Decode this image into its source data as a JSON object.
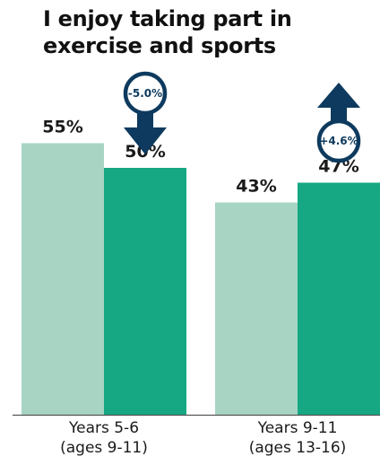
{
  "chart_data": {
    "type": "bar",
    "title_lines": [
      "I enjoy taking part in",
      "exercise and sports"
    ],
    "categories": [
      [
        "Years 5-6",
        "(ages 9-11)"
      ],
      [
        "Years 9-11",
        "(ages 13-16)"
      ]
    ],
    "series": [
      {
        "values": [
          55,
          43
        ],
        "labels": [
          "55%",
          "43%"
        ],
        "color": "#a8d5c3"
      },
      {
        "values": [
          50,
          47
        ],
        "labels": [
          "50%",
          "47%"
        ],
        "color": "#15a882"
      }
    ],
    "changes": [
      {
        "label": "-5.0%",
        "direction": "down"
      },
      {
        "label": "+4.6%",
        "direction": "up"
      }
    ],
    "ylim": [
      0,
      64
    ],
    "grid": false,
    "arrow_color": "#0d3a5e",
    "axis_color": "#555555"
  }
}
